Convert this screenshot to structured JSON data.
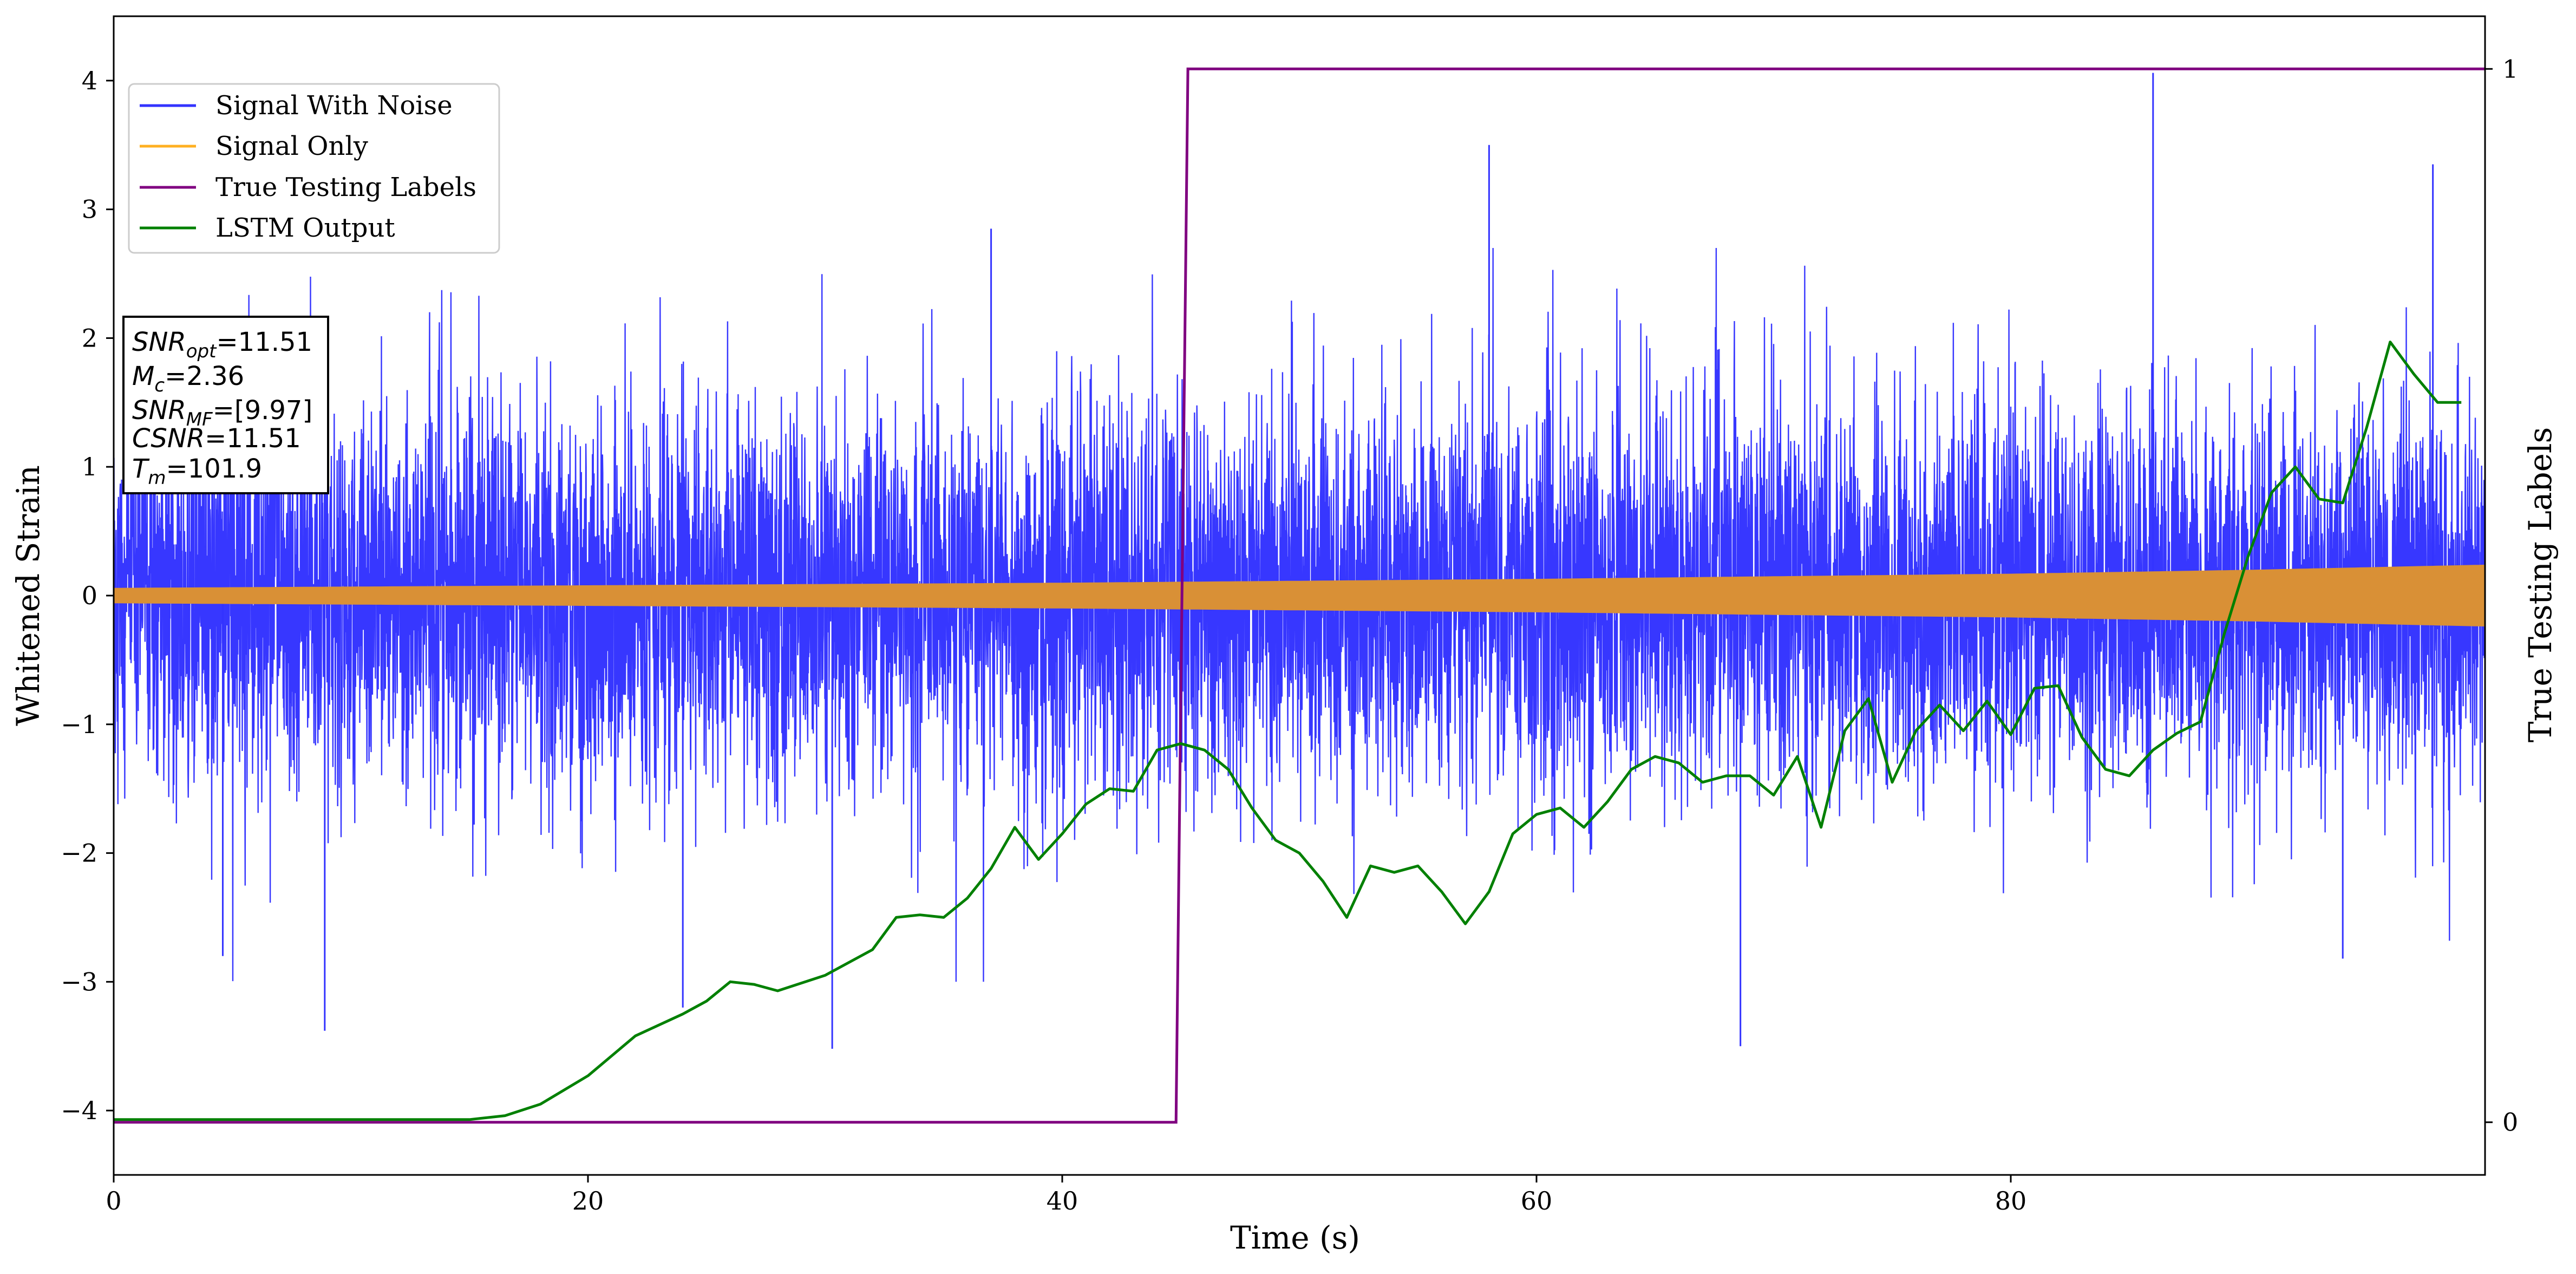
{
  "chart_data": {
    "type": "line",
    "xlabel": "Time (s)",
    "ylabel": "Whitened Strain",
    "y2label": "True Testing Labels",
    "xlim": [
      0,
      100
    ],
    "ylim": [
      -4.5,
      4.5
    ],
    "y2lim": [
      -0.05,
      1.05
    ],
    "grid": false,
    "legend_placement": "top-left",
    "x_ticks": [
      0,
      20,
      40,
      60,
      80
    ],
    "y_ticks": [
      -4,
      -3,
      -2,
      -1,
      0,
      1,
      2,
      3,
      4
    ],
    "y2_ticks": [
      0,
      1
    ],
    "colors": {
      "signal_with_noise": "#3333ff",
      "signal_only_legend": "#ffb022",
      "signal_only_fill": "#d99036",
      "true_labels": "#800080",
      "lstm_output": "#008000"
    },
    "series": [
      {
        "name": "Signal With Noise",
        "axis": "left",
        "noise_sigma": 0.75,
        "typical_upper_envelope": 1.5,
        "typical_lower_envelope": -1.6,
        "notable_peaks": [
          {
            "x": 86.0,
            "y": 4.06
          },
          {
            "x": 97.8,
            "y": 3.35
          },
          {
            "x": 37.0,
            "y": 2.85
          },
          {
            "x": 8.9,
            "y": -3.38
          },
          {
            "x": 24.0,
            "y": -3.2
          },
          {
            "x": 30.3,
            "y": -3.52
          },
          {
            "x": 68.6,
            "y": -3.5
          },
          {
            "x": 94.0,
            "y": -2.82
          },
          {
            "x": 4.6,
            "y": -2.8
          },
          {
            "x": 58.0,
            "y": 3.5
          }
        ]
      },
      {
        "name": "Signal Only",
        "axis": "left",
        "amplitude": {
          "x": [
            0,
            20,
            40,
            60,
            80,
            90,
            100
          ],
          "y": [
            0.06,
            0.08,
            0.1,
            0.13,
            0.17,
            0.2,
            0.24
          ]
        }
      },
      {
        "name": "True Testing Labels",
        "axis": "right",
        "x": [
          0,
          44.8,
          45.3,
          100
        ],
        "y": [
          0,
          0,
          1,
          1
        ]
      },
      {
        "name": "LSTM Output",
        "axis": "left",
        "x": [
          0,
          10,
          15,
          16.5,
          18,
          20,
          22,
          24,
          25,
          26,
          27,
          28,
          30,
          32,
          33,
          34,
          35,
          36,
          37,
          38,
          39,
          40,
          41,
          42,
          43,
          44,
          45,
          46,
          47,
          48,
          49,
          50,
          51,
          52,
          53,
          54,
          55,
          56,
          57,
          58,
          59,
          60,
          61,
          62,
          63,
          64,
          65,
          66,
          67,
          68,
          69,
          70,
          71,
          72,
          73,
          74,
          75,
          76,
          77,
          78,
          79,
          80,
          81,
          82,
          83,
          84,
          85,
          86,
          87,
          88,
          89,
          90,
          91,
          92,
          93,
          94,
          95,
          96,
          97,
          98,
          99
        ],
        "y": [
          -4.07,
          -4.07,
          -4.07,
          -4.04,
          -3.95,
          -3.73,
          -3.42,
          -3.25,
          -3.15,
          -3.0,
          -3.02,
          -3.07,
          -2.95,
          -2.75,
          -2.5,
          -2.48,
          -2.5,
          -2.35,
          -2.12,
          -1.8,
          -2.05,
          -1.85,
          -1.62,
          -1.5,
          -1.52,
          -1.2,
          -1.15,
          -1.2,
          -1.35,
          -1.65,
          -1.9,
          -2.0,
          -2.22,
          -2.5,
          -2.1,
          -2.15,
          -2.1,
          -2.3,
          -2.55,
          -2.3,
          -1.85,
          -1.7,
          -1.65,
          -1.8,
          -1.6,
          -1.35,
          -1.25,
          -1.3,
          -1.45,
          -1.4,
          -1.4,
          -1.55,
          -1.25,
          -1.8,
          -1.05,
          -0.8,
          -1.45,
          -1.05,
          -0.85,
          -1.05,
          -0.82,
          -1.08,
          -0.72,
          -0.7,
          -1.1,
          -1.35,
          -1.4,
          -1.2,
          -1.07,
          -0.98,
          -0.3,
          0.3,
          0.8,
          1.0,
          0.75,
          0.72,
          1.3,
          1.97,
          1.72,
          1.5,
          1.5
        ]
      }
    ],
    "annotation_lines": [
      "SNR_opt=11.51",
      "M_c=2.36",
      "SNR_MF=[9.97]",
      "CSNR=11.51",
      "T_m=101.9"
    ]
  },
  "annotation": {
    "line1": {
      "var": "SNR",
      "sub": "opt",
      "rest": "=11.51"
    },
    "line2": {
      "var": "M",
      "sub": "c",
      "rest": "=2.36"
    },
    "line3": {
      "var": "SNR",
      "sub": "MF",
      "rest": "=[9.97]"
    },
    "line4": {
      "var": "CSNR",
      "sub": "",
      "rest": "=11.51"
    },
    "line5": {
      "var": "T",
      "sub": "m",
      "rest": "=101.9"
    }
  }
}
